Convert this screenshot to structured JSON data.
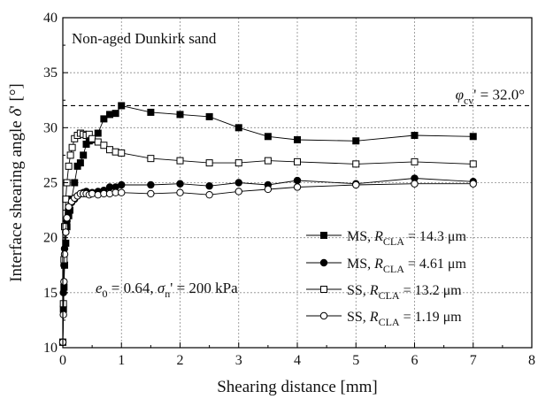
{
  "chart_data": {
    "type": "line",
    "title": "Non-aged Dunkirk sand",
    "xlabel": "Shearing distance [mm]",
    "ylabel": "Interface shearing angle δ' [°]",
    "xlim": [
      0,
      8
    ],
    "ylim": [
      10,
      40
    ],
    "x_ticks": [
      "0",
      "1",
      "2",
      "3",
      "4",
      "5",
      "6",
      "7",
      "8"
    ],
    "y_ticks": [
      "10",
      "15",
      "20",
      "25",
      "30",
      "35",
      "40"
    ],
    "grid": true,
    "legend_position": "lower-right",
    "annotation_state": "e0 = 0.64, σn' = 200 kPa",
    "reference_line": {
      "label": "φcv' = 32.0°",
      "y": 32.0
    },
    "series": [
      {
        "name": "MS, RCLA = 14.3 μm",
        "marker": "square-filled",
        "x": [
          0,
          0.01,
          0.02,
          0.03,
          0.05,
          0.07,
          0.1,
          0.12,
          0.15,
          0.2,
          0.25,
          0.3,
          0.35,
          0.4,
          0.45,
          0.5,
          0.6,
          0.7,
          0.8,
          0.9,
          1.0,
          1.5,
          2.0,
          2.5,
          3.0,
          3.5,
          4.0,
          5.0,
          6.0,
          7.0
        ],
        "y": [
          10.5,
          13.5,
          15.5,
          17.5,
          19.5,
          21.0,
          22.0,
          22.5,
          23.5,
          25.0,
          26.5,
          26.8,
          27.5,
          28.5,
          28.8,
          28.9,
          29.5,
          30.8,
          31.2,
          31.3,
          32.0,
          31.4,
          31.2,
          31.0,
          30.0,
          29.2,
          28.9,
          28.8,
          29.3,
          29.2
        ]
      },
      {
        "name": "MS, RCLA = 4.61 μm",
        "marker": "circle-filled",
        "x": [
          0,
          0.01,
          0.02,
          0.03,
          0.05,
          0.07,
          0.1,
          0.15,
          0.2,
          0.25,
          0.3,
          0.35,
          0.4,
          0.45,
          0.5,
          0.6,
          0.7,
          0.8,
          0.9,
          1.0,
          1.5,
          2.0,
          2.5,
          3.0,
          3.5,
          4.0,
          5.0,
          6.0,
          7.0
        ],
        "y": [
          10.5,
          15.0,
          17.5,
          19.0,
          20.5,
          21.5,
          22.5,
          23.2,
          23.5,
          23.8,
          24.0,
          24.1,
          24.2,
          24.0,
          24.1,
          24.2,
          24.3,
          24.6,
          24.6,
          24.8,
          24.8,
          24.9,
          24.7,
          25.0,
          24.8,
          25.2,
          24.9,
          25.4,
          25.1
        ]
      },
      {
        "name": "SS, RCLA = 13.2 μm",
        "marker": "square-open",
        "x": [
          0,
          0.01,
          0.02,
          0.03,
          0.05,
          0.07,
          0.1,
          0.13,
          0.16,
          0.2,
          0.25,
          0.3,
          0.35,
          0.4,
          0.45,
          0.5,
          0.6,
          0.7,
          0.8,
          0.9,
          1.0,
          1.5,
          2.0,
          2.5,
          3.0,
          3.5,
          4.0,
          5.0,
          6.0,
          7.0
        ],
        "y": [
          10.5,
          14.0,
          18.0,
          21.0,
          23.5,
          25.0,
          26.5,
          27.5,
          28.2,
          29.0,
          29.3,
          29.5,
          29.4,
          29.3,
          29.4,
          29.0,
          28.7,
          28.4,
          28.0,
          27.8,
          27.7,
          27.2,
          27.0,
          26.8,
          26.8,
          27.0,
          26.9,
          26.7,
          26.9,
          26.7
        ]
      },
      {
        "name": "SS, RCLA = 1.19 μm",
        "marker": "circle-open",
        "x": [
          0,
          0.01,
          0.02,
          0.03,
          0.05,
          0.07,
          0.1,
          0.15,
          0.2,
          0.25,
          0.3,
          0.35,
          0.4,
          0.45,
          0.5,
          0.6,
          0.7,
          0.8,
          0.9,
          1.0,
          1.5,
          2.0,
          2.5,
          3.0,
          3.5,
          4.0,
          5.0,
          6.0,
          7.0
        ],
        "y": [
          10.5,
          13.0,
          16.0,
          18.5,
          20.5,
          21.8,
          22.8,
          23.3,
          23.6,
          23.8,
          24.0,
          24.0,
          24.0,
          23.9,
          24.0,
          23.9,
          24.0,
          24.0,
          24.1,
          24.1,
          24.0,
          24.1,
          23.9,
          24.2,
          24.4,
          24.6,
          24.8,
          24.9,
          24.9
        ]
      }
    ],
    "legend": [
      {
        "series": 0,
        "prefix": "MS,",
        "symbol": "R",
        "subscript": "CLA",
        "value": "= 14.3 μm"
      },
      {
        "series": 1,
        "prefix": "MS,",
        "symbol": "R",
        "subscript": "CLA",
        "value": "= 4.61 μm"
      },
      {
        "series": 2,
        "prefix": "SS,",
        "symbol": "R",
        "subscript": "CLA",
        "value": "= 13.2 μm"
      },
      {
        "series": 3,
        "prefix": "SS,",
        "symbol": "R",
        "subscript": "CLA",
        "value": "= 1.19 μm"
      }
    ]
  }
}
